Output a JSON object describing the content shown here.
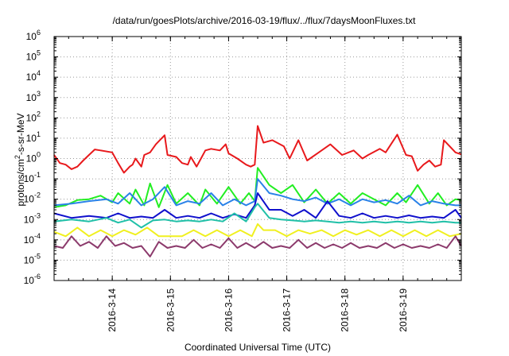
{
  "chart_data": {
    "type": "line",
    "title": "/data/run/goesPlots/archive/2016-03-19/flux/../flux/7daysMoonFluxes.txt",
    "xlabel": "Coordinated Universal Time (UTC)",
    "ylabel": {
      "base": "protons/cm",
      "sup": "2",
      "rest": "-s-sr-MeV"
    },
    "y_scale": "log",
    "ylim_exp": [
      -6,
      6
    ],
    "y_tick_exps": [
      "-6",
      "-5",
      "-4",
      "-3",
      "-2",
      "-1",
      "0",
      "1",
      "2",
      "3",
      "4",
      "5",
      "6"
    ],
    "y_tick_base": "10",
    "xlim_days": [
      13.0,
      20.0
    ],
    "x_ticks": [
      {
        "label": "2016-3-14",
        "day": 14
      },
      {
        "label": "2016-3-15",
        "day": 15
      },
      {
        "label": "2016-3-16",
        "day": 16
      },
      {
        "label": "2016-3-17",
        "day": 17
      },
      {
        "label": "2016-3-18",
        "day": 18
      },
      {
        "label": "2016-3-19",
        "day": 19
      }
    ],
    "grid": true,
    "legend": "none",
    "series": [
      {
        "color": "#e8191c",
        "x": [
          13.0,
          13.1,
          13.2,
          13.3,
          13.4,
          13.5,
          13.6,
          13.7,
          13.8,
          14.0,
          14.1,
          14.2,
          14.3,
          14.35,
          14.4,
          14.5,
          14.55,
          14.65,
          14.75,
          14.9,
          14.95,
          15.1,
          15.2,
          15.3,
          15.35,
          15.45,
          15.6,
          15.7,
          15.85,
          15.95,
          16.0,
          16.15,
          16.3,
          16.38,
          16.45,
          16.5,
          16.6,
          16.75,
          16.95,
          17.05,
          17.2,
          17.35,
          17.55,
          17.75,
          17.95,
          18.15,
          18.3,
          18.4,
          18.6,
          18.7,
          18.9,
          19.05,
          19.15,
          19.25,
          19.35,
          19.45,
          19.55,
          19.65,
          19.7,
          19.8,
          19.9,
          20.0
        ],
        "y": [
          1.5,
          0.6,
          0.5,
          0.3,
          0.4,
          0.8,
          1.5,
          2.8,
          2.5,
          2.0,
          0.6,
          0.2,
          0.4,
          0.5,
          1.0,
          0.4,
          1.5,
          2.0,
          5.0,
          14,
          1.5,
          1.2,
          0.6,
          0.5,
          1.2,
          0.4,
          2.5,
          3.0,
          2.5,
          5.0,
          1.8,
          1.0,
          0.5,
          0.4,
          0.5,
          40,
          6.0,
          8.0,
          4.0,
          1.0,
          8.0,
          0.8,
          2.0,
          5.0,
          1.5,
          2.5,
          1.0,
          1.5,
          3.0,
          2.0,
          15,
          1.5,
          1.3,
          0.25,
          0.5,
          0.8,
          0.4,
          0.5,
          8.0,
          4.0,
          2.0,
          1.6
        ]
      },
      {
        "color": "#22ee22",
        "x": [
          13.0,
          13.2,
          13.4,
          13.6,
          13.8,
          14.0,
          14.1,
          14.3,
          14.4,
          14.55,
          14.65,
          14.8,
          14.95,
          15.1,
          15.3,
          15.5,
          15.6,
          15.8,
          16.0,
          16.2,
          16.35,
          16.45,
          16.5,
          16.7,
          16.9,
          17.1,
          17.3,
          17.5,
          17.7,
          17.9,
          18.1,
          18.3,
          18.5,
          18.7,
          18.9,
          19.05,
          19.25,
          19.45,
          19.6,
          19.75,
          19.9,
          20.0
        ],
        "y": [
          0.004,
          0.005,
          0.009,
          0.01,
          0.015,
          0.007,
          0.02,
          0.006,
          0.03,
          0.005,
          0.06,
          0.004,
          0.05,
          0.006,
          0.02,
          0.005,
          0.03,
          0.006,
          0.04,
          0.006,
          0.02,
          0.008,
          0.35,
          0.05,
          0.02,
          0.05,
          0.007,
          0.03,
          0.006,
          0.02,
          0.006,
          0.02,
          0.01,
          0.005,
          0.02,
          0.007,
          0.05,
          0.006,
          0.02,
          0.005,
          0.01,
          0.009
        ]
      },
      {
        "color": "#2a82e8",
        "x": [
          13.0,
          13.3,
          13.6,
          13.9,
          14.1,
          14.3,
          14.5,
          14.7,
          14.9,
          15.1,
          15.3,
          15.5,
          15.7,
          15.9,
          16.1,
          16.3,
          16.45,
          16.5,
          16.7,
          16.9,
          17.1,
          17.3,
          17.5,
          17.7,
          17.9,
          18.1,
          18.3,
          18.5,
          18.7,
          18.9,
          19.1,
          19.3,
          19.5,
          19.7,
          19.9,
          20.0
        ],
        "y": [
          0.005,
          0.006,
          0.008,
          0.01,
          0.006,
          0.02,
          0.005,
          0.01,
          0.04,
          0.005,
          0.008,
          0.006,
          0.02,
          0.005,
          0.01,
          0.005,
          0.008,
          0.1,
          0.02,
          0.015,
          0.01,
          0.008,
          0.012,
          0.006,
          0.01,
          0.005,
          0.01,
          0.007,
          0.009,
          0.006,
          0.015,
          0.005,
          0.008,
          0.006,
          0.005,
          0.005
        ]
      },
      {
        "color": "#1010cc",
        "x": [
          13.0,
          13.3,
          13.6,
          13.9,
          14.1,
          14.3,
          14.5,
          14.7,
          14.9,
          15.1,
          15.3,
          15.5,
          15.7,
          15.9,
          16.1,
          16.3,
          16.45,
          16.5,
          16.7,
          16.9,
          17.1,
          17.3,
          17.5,
          17.7,
          17.9,
          18.1,
          18.3,
          18.5,
          18.7,
          18.9,
          19.1,
          19.3,
          19.5,
          19.7,
          19.9,
          20.0
        ],
        "y": [
          0.002,
          0.0012,
          0.0015,
          0.0012,
          0.002,
          0.0012,
          0.0014,
          0.0012,
          0.003,
          0.0012,
          0.0015,
          0.0012,
          0.002,
          0.0012,
          0.0018,
          0.0012,
          0.005,
          0.02,
          0.003,
          0.003,
          0.0015,
          0.003,
          0.0012,
          0.008,
          0.0015,
          0.0012,
          0.002,
          0.0012,
          0.0015,
          0.0012,
          0.0016,
          0.0012,
          0.0014,
          0.0012,
          0.003,
          0.0012
        ]
      },
      {
        "color": "#20c0a8",
        "x": [
          13.0,
          13.3,
          13.6,
          13.9,
          14.1,
          14.3,
          14.5,
          14.7,
          14.9,
          15.1,
          15.3,
          15.5,
          15.7,
          15.9,
          16.1,
          16.3,
          16.45,
          16.5,
          16.7,
          16.9,
          17.1,
          17.3,
          17.5,
          17.7,
          17.9,
          18.1,
          18.3,
          18.5,
          18.7,
          18.9,
          19.1,
          19.3,
          19.5,
          19.7,
          19.9,
          20.0
        ],
        "y": [
          0.0008,
          0.001,
          0.0008,
          0.0012,
          0.0007,
          0.001,
          0.0004,
          0.0009,
          0.001,
          0.0008,
          0.0009,
          0.0008,
          0.001,
          0.0008,
          0.002,
          0.0008,
          0.004,
          0.006,
          0.0012,
          0.001,
          0.0009,
          0.0008,
          0.0009,
          0.0008,
          0.0007,
          0.0008,
          0.0007,
          0.0008,
          0.0007,
          0.0008,
          0.0007,
          0.0008,
          0.0007,
          0.0008,
          0.0007,
          0.0007
        ]
      },
      {
        "color": "#f0f020",
        "x": [
          13.0,
          13.2,
          13.4,
          13.6,
          13.8,
          14.0,
          14.2,
          14.4,
          14.6,
          14.8,
          15.0,
          15.2,
          15.4,
          15.6,
          15.8,
          16.0,
          16.2,
          16.4,
          16.5,
          16.6,
          16.8,
          17.0,
          17.2,
          17.4,
          17.6,
          17.8,
          18.0,
          18.2,
          18.4,
          18.6,
          18.8,
          19.0,
          19.2,
          19.4,
          19.6,
          19.8,
          20.0
        ],
        "y": [
          0.00025,
          0.00015,
          0.0004,
          0.00015,
          0.0003,
          0.00015,
          0.0003,
          0.00018,
          0.0004,
          0.00015,
          0.00015,
          0.00015,
          0.0003,
          0.00015,
          0.0003,
          0.00015,
          0.0003,
          0.00015,
          0.0006,
          0.0003,
          0.0003,
          0.00015,
          0.0003,
          0.0002,
          0.0003,
          0.00015,
          0.0003,
          0.00018,
          0.0003,
          0.00015,
          0.0003,
          0.00015,
          0.0003,
          0.00015,
          0.0003,
          0.00015,
          0.0002
        ]
      },
      {
        "color": "#8c3a6c",
        "x": [
          13.0,
          13.15,
          13.3,
          13.45,
          13.6,
          13.75,
          13.9,
          14.05,
          14.2,
          14.35,
          14.5,
          14.65,
          14.8,
          14.95,
          15.1,
          15.25,
          15.4,
          15.55,
          15.7,
          15.85,
          16.0,
          16.15,
          16.3,
          16.45,
          16.6,
          16.75,
          16.9,
          17.05,
          17.2,
          17.35,
          17.5,
          17.65,
          17.8,
          17.95,
          18.1,
          18.25,
          18.4,
          18.55,
          18.7,
          18.85,
          19.0,
          19.15,
          19.3,
          19.45,
          19.6,
          19.75,
          19.9,
          20.0
        ],
        "y": [
          5e-05,
          4e-05,
          0.00015,
          5e-05,
          8e-05,
          4e-05,
          0.00015,
          5e-05,
          7e-05,
          4e-05,
          5e-05,
          1.5e-05,
          8e-05,
          4e-05,
          5e-05,
          4e-05,
          0.0001,
          4e-05,
          6e-05,
          4e-05,
          0.00012,
          4e-05,
          7e-05,
          4e-05,
          8e-05,
          4e-05,
          5e-05,
          4e-05,
          0.0001,
          4e-05,
          7e-05,
          4e-05,
          6e-05,
          4e-05,
          7e-05,
          4e-05,
          5e-05,
          4e-05,
          7e-05,
          4e-05,
          6e-05,
          4e-05,
          5e-05,
          4e-05,
          6e-05,
          4e-05,
          0.00015,
          5e-05
        ]
      }
    ]
  }
}
